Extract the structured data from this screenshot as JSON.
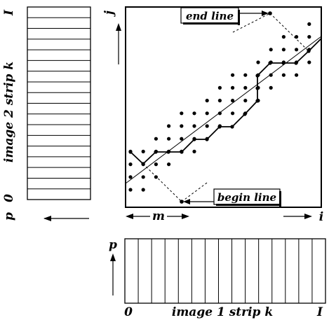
{
  "left_strip": {
    "label": "image 2 strip k",
    "top_tick": "I",
    "bottom_tick": "0",
    "axis_label": "p",
    "cells": 18
  },
  "bottom_strip": {
    "label": "image 1 strip k",
    "left_tick": "0",
    "right_tick": "I",
    "axis_label": "p",
    "cells": 15
  },
  "main_plot": {
    "x_axis_label": "i",
    "y_axis_label": "j",
    "end_line_label": "end line",
    "begin_line_label": "begin line",
    "band_width_label": "m",
    "dot_color": "#000000",
    "path_color": "#000000"
  }
}
